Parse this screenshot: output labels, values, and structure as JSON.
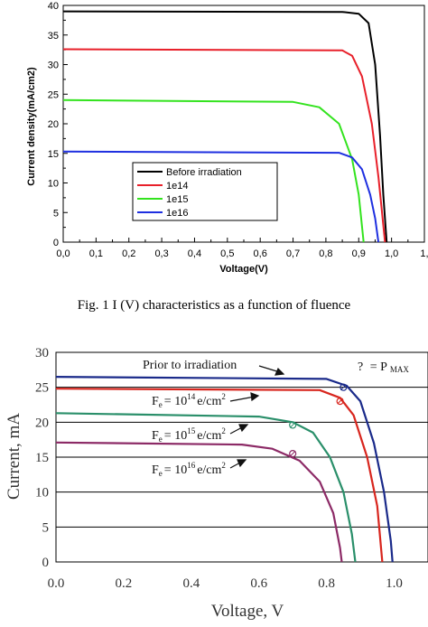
{
  "caption": "Fig. 1 I (V) characteristics as a function of fluence",
  "chart_data": [
    {
      "type": "line",
      "title": "",
      "xlabel": "Voltage(V)",
      "ylabel": "Current density(mA/cm2)",
      "xlim": [
        0.0,
        1.0
      ],
      "ylim": [
        0,
        40
      ],
      "x_tick_labels": [
        "0,0",
        "0,1",
        "0,2",
        "0,3",
        "0,4",
        "0,5",
        "0,6",
        "0,7",
        "0,8",
        "0,9",
        "1,0",
        "1,"
      ],
      "y_tick_labels": [
        "0",
        "5",
        "10",
        "15",
        "20",
        "25",
        "30",
        "35",
        "40"
      ],
      "legend_position": "lower-left",
      "grid": false,
      "series": [
        {
          "name": "Before irradiation",
          "color": "#000000",
          "isc": 39.0,
          "voc": 0.985,
          "knee": 0.9,
          "points": [
            [
              0,
              39.0
            ],
            [
              0.85,
              38.9
            ],
            [
              0.9,
              38.6
            ],
            [
              0.93,
              37.0
            ],
            [
              0.95,
              30.0
            ],
            [
              0.965,
              18.0
            ],
            [
              0.975,
              8.0
            ],
            [
              0.985,
              0
            ]
          ]
        },
        {
          "name": "1e14",
          "color": "#e8202a",
          "isc": 32.6,
          "voc": 0.98,
          "knee": 0.88,
          "points": [
            [
              0,
              32.6
            ],
            [
              0.85,
              32.4
            ],
            [
              0.88,
              31.5
            ],
            [
              0.91,
              28.0
            ],
            [
              0.94,
              20.0
            ],
            [
              0.96,
              11.0
            ],
            [
              0.98,
              0
            ]
          ]
        },
        {
          "name": "1e15",
          "color": "#33e31e",
          "isc": 24.0,
          "voc": 0.915,
          "knee": 0.78,
          "points": [
            [
              0,
              24.0
            ],
            [
              0.7,
              23.7
            ],
            [
              0.78,
              22.8
            ],
            [
              0.84,
              20.0
            ],
            [
              0.88,
              14.0
            ],
            [
              0.9,
              8.0
            ],
            [
              0.915,
              0
            ]
          ]
        },
        {
          "name": "1e16",
          "color": "#1e2fe0",
          "isc": 15.3,
          "voc": 0.96,
          "knee": 0.86,
          "points": [
            [
              0,
              15.3
            ],
            [
              0.84,
              15.1
            ],
            [
              0.88,
              14.3
            ],
            [
              0.91,
              12.3
            ],
            [
              0.935,
              8.0
            ],
            [
              0.95,
              4.0
            ],
            [
              0.96,
              0
            ]
          ]
        }
      ]
    },
    {
      "type": "line",
      "title": "",
      "xlabel": "Voltage, V",
      "ylabel": "Current, mA",
      "xlim": [
        0.0,
        1.1
      ],
      "ylim": [
        0,
        30
      ],
      "x_tick_labels": [
        "0.0",
        "0.2",
        "0.4",
        "0.6",
        "0.8",
        "1.0"
      ],
      "y_tick_labels": [
        "0",
        "5",
        "10",
        "15",
        "20",
        "25",
        "30"
      ],
      "grid": true,
      "marker_legend": {
        "symbol": "?",
        "text": "= P",
        "sub": "MAX"
      },
      "series": [
        {
          "name": "Prior to irradiation",
          "color": "#1a2a8a",
          "isc": 26.5,
          "voc": 0.995,
          "points": [
            [
              0,
              26.5
            ],
            [
              0.8,
              26.2
            ],
            [
              0.86,
              25.2
            ],
            [
              0.9,
              23.0
            ],
            [
              0.94,
              17.0
            ],
            [
              0.97,
              10.0
            ],
            [
              0.99,
              3.0
            ],
            [
              0.995,
              0
            ]
          ],
          "max_power_point": [
            0.85,
            25.0
          ]
        },
        {
          "name_prefix": "F",
          "name_sub": "e",
          "name_eq": "= 10",
          "name_sup": "14",
          "name_unit": "e/cm",
          "name_unit_sup": "2",
          "color": "#d8261e",
          "isc": 24.8,
          "voc": 0.965,
          "points": [
            [
              0,
              24.8
            ],
            [
              0.78,
              24.6
            ],
            [
              0.84,
              23.5
            ],
            [
              0.88,
              21.0
            ],
            [
              0.92,
              15.0
            ],
            [
              0.95,
              8.0
            ],
            [
              0.965,
              0
            ]
          ],
          "max_power_point": [
            0.84,
            23.0
          ]
        },
        {
          "name_prefix": "F",
          "name_sub": "e",
          "name_eq": "= 10",
          "name_sup": "15",
          "name_unit": "e/cm",
          "name_unit_sup": "2",
          "color": "#2a8f6a",
          "isc": 21.3,
          "voc": 0.885,
          "points": [
            [
              0,
              21.3
            ],
            [
              0.6,
              20.8
            ],
            [
              0.7,
              20.0
            ],
            [
              0.76,
              18.5
            ],
            [
              0.81,
              15.0
            ],
            [
              0.85,
              10.0
            ],
            [
              0.875,
              4.0
            ],
            [
              0.885,
              0
            ]
          ],
          "max_power_point": [
            0.7,
            19.6
          ]
        },
        {
          "name_prefix": "F",
          "name_sub": "e",
          "name_eq": "= 10",
          "name_sup": "16",
          "name_unit": "e/cm",
          "name_unit_sup": "2",
          "color": "#8c2a66",
          "isc": 17.1,
          "voc": 0.845,
          "points": [
            [
              0,
              17.1
            ],
            [
              0.55,
              16.8
            ],
            [
              0.64,
              16.2
            ],
            [
              0.72,
              14.5
            ],
            [
              0.78,
              11.5
            ],
            [
              0.82,
              7.0
            ],
            [
              0.84,
              2.0
            ],
            [
              0.845,
              0
            ]
          ],
          "max_power_point": [
            0.7,
            15.5
          ]
        }
      ]
    }
  ]
}
